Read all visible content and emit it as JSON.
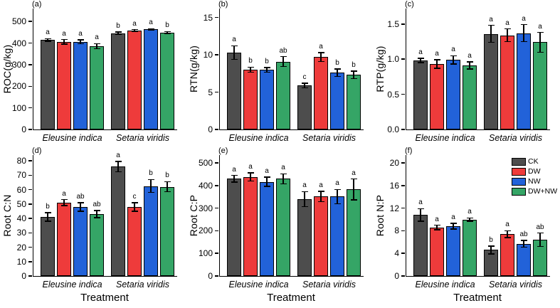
{
  "figure": {
    "x_axis_title": "Treatment",
    "groups": [
      "Eleusine indica",
      "Setaria viridis"
    ],
    "treatment_colors": {
      "CK": "#4d4d4d",
      "DW": "#ee3b3b",
      "NW": "#2262d9",
      "DW+NW": "#35a566"
    },
    "legend": {
      "position": "top-right-of-panel-f",
      "entries": [
        {
          "label": "CK",
          "color": "#4d4d4d"
        },
        {
          "label": "DW",
          "color": "#ee3b3b"
        },
        {
          "label": "NW",
          "color": "#2262d9"
        },
        {
          "label": "DW+NW",
          "color": "#35a566"
        }
      ]
    }
  },
  "chart_data": [
    {
      "panel": "(a)",
      "type": "bar",
      "ylabel": "ROC(g/kg)",
      "ylim": [
        0,
        560
      ],
      "yticks": [
        0,
        100,
        200,
        300,
        400,
        500
      ],
      "ytick_labels": [
        "0",
        "100",
        "200",
        "300",
        "400",
        "500"
      ],
      "categories": [
        "Eleusine indica",
        "Setaria viridis"
      ],
      "series": [
        {
          "name": "CK",
          "color": "#4d4d4d",
          "values": [
            415,
            446
          ],
          "errors": [
            6,
            5
          ],
          "letters": [
            "a",
            "b"
          ]
        },
        {
          "name": "DW",
          "color": "#ee3b3b",
          "values": [
            406,
            458
          ],
          "errors": [
            10,
            4
          ],
          "letters": [
            "a",
            "a"
          ]
        },
        {
          "name": "NW",
          "color": "#2262d9",
          "values": [
            406,
            463
          ],
          "errors": [
            9,
            4
          ],
          "letters": [
            "a",
            "a"
          ]
        },
        {
          "name": "DW+NW",
          "color": "#35a566",
          "values": [
            386,
            449
          ],
          "errors": [
            12,
            4
          ],
          "letters": [
            "a",
            "b"
          ]
        }
      ]
    },
    {
      "panel": "(b)",
      "type": "bar",
      "ylabel": "RTN(g/kg)",
      "ylim": [
        0,
        16.2
      ],
      "yticks": [
        0,
        5,
        10,
        15
      ],
      "ytick_labels": [
        "0",
        "5",
        "10",
        "15"
      ],
      "categories": [
        "Eleusine indica",
        "Setaria viridis"
      ],
      "series": [
        {
          "name": "CK",
          "color": "#4d4d4d",
          "values": [
            10.3,
            5.9
          ],
          "errors": [
            0.9,
            0.3
          ],
          "letters": [
            "a",
            "c"
          ]
        },
        {
          "name": "DW",
          "color": "#ee3b3b",
          "values": [
            8.0,
            9.7
          ],
          "errors": [
            0.35,
            0.6
          ],
          "letters": [
            "b",
            "a"
          ]
        },
        {
          "name": "NW",
          "color": "#2262d9",
          "values": [
            8.0,
            7.6
          ],
          "errors": [
            0.3,
            0.5
          ],
          "letters": [
            "b",
            "b"
          ]
        },
        {
          "name": "DW+NW",
          "color": "#35a566",
          "values": [
            9.1,
            7.3
          ],
          "errors": [
            0.65,
            0.5
          ],
          "letters": [
            "ab",
            "b"
          ]
        }
      ]
    },
    {
      "panel": "(c)",
      "type": "bar",
      "ylabel": "RTP(g/kg)",
      "ylim": [
        0,
        1.72
      ],
      "yticks": [
        0,
        0.5,
        1,
        1.5
      ],
      "ytick_labels": [
        "0.0",
        "0.5",
        "1.0",
        "1.5"
      ],
      "categories": [
        "Eleusine indica",
        "Setaria viridis"
      ],
      "series": [
        {
          "name": "CK",
          "color": "#4d4d4d",
          "values": [
            0.98,
            1.36
          ],
          "errors": [
            0.03,
            0.12
          ],
          "letters": [
            "a",
            "a"
          ]
        },
        {
          "name": "DW",
          "color": "#ee3b3b",
          "values": [
            0.93,
            1.34
          ],
          "errors": [
            0.06,
            0.09
          ],
          "letters": [
            "a",
            "a"
          ]
        },
        {
          "name": "NW",
          "color": "#2262d9",
          "values": [
            0.99,
            1.37
          ],
          "errors": [
            0.06,
            0.12
          ],
          "letters": [
            "a",
            "a"
          ]
        },
        {
          "name": "DW+NW",
          "color": "#35a566",
          "values": [
            0.91,
            1.24
          ],
          "errors": [
            0.05,
            0.14
          ],
          "letters": [
            "a",
            "a"
          ]
        }
      ]
    },
    {
      "panel": "(d)",
      "type": "bar",
      "ylabel": "Root C:N",
      "ylim": [
        0,
        84
      ],
      "yticks": [
        0,
        10,
        20,
        30,
        40,
        50,
        60,
        70,
        80
      ],
      "ytick_labels": [
        "0",
        "10",
        "20",
        "30",
        "40",
        "50",
        "60",
        "70",
        "80"
      ],
      "categories": [
        "Eleusine indica",
        "Setaria viridis"
      ],
      "series": [
        {
          "name": "CK",
          "color": "#4d4d4d",
          "values": [
            41,
            76
          ],
          "errors": [
            3,
            3.5
          ],
          "letters": [
            "b",
            "a"
          ]
        },
        {
          "name": "DW",
          "color": "#ee3b3b",
          "values": [
            51,
            48
          ],
          "errors": [
            2,
            3
          ],
          "letters": [
            "a",
            "c"
          ]
        },
        {
          "name": "NW",
          "color": "#2262d9",
          "values": [
            48,
            62.5
          ],
          "errors": [
            3,
            4.5
          ],
          "letters": [
            "ab",
            "b"
          ]
        },
        {
          "name": "DW+NW",
          "color": "#35a566",
          "values": [
            43,
            62
          ],
          "errors": [
            2.5,
            3.5
          ],
          "letters": [
            "ab",
            "b"
          ]
        }
      ]
    },
    {
      "panel": "(e)",
      "type": "bar",
      "ylabel": "Root C:P",
      "ylim": [
        0,
        535
      ],
      "yticks": [
        0,
        100,
        200,
        300,
        400,
        500
      ],
      "ytick_labels": [
        "0",
        "100",
        "200",
        "300",
        "400",
        "500"
      ],
      "categories": [
        "Eleusine indica",
        "Setaria viridis"
      ],
      "series": [
        {
          "name": "CK",
          "color": "#4d4d4d",
          "values": [
            430,
            340
          ],
          "errors": [
            15,
            33
          ],
          "letters": [
            "a",
            "a"
          ]
        },
        {
          "name": "DW",
          "color": "#ee3b3b",
          "values": [
            438,
            352
          ],
          "errors": [
            18,
            23
          ],
          "letters": [
            "a",
            "a"
          ]
        },
        {
          "name": "NW",
          "color": "#2262d9",
          "values": [
            417,
            351
          ],
          "errors": [
            20,
            32
          ],
          "letters": [
            "a",
            "a"
          ]
        },
        {
          "name": "DW+NW",
          "color": "#35a566",
          "values": [
            430,
            383
          ],
          "errors": [
            22,
            46
          ],
          "letters": [
            "a",
            "a"
          ]
        }
      ]
    },
    {
      "panel": "(f)",
      "type": "bar",
      "ylabel": "Root N:P",
      "ylim": [
        0,
        21.4
      ],
      "yticks": [
        0,
        4,
        8,
        12,
        16,
        20
      ],
      "ytick_labels": [
        "0",
        "4",
        "8",
        "12",
        "16",
        "20"
      ],
      "categories": [
        "Eleusine indica",
        "Setaria viridis"
      ],
      "series": [
        {
          "name": "CK",
          "color": "#4d4d4d",
          "values": [
            10.8,
            4.6
          ],
          "errors": [
            1.1,
            0.7
          ],
          "letters": [
            "a",
            "b"
          ]
        },
        {
          "name": "DW",
          "color": "#ee3b3b",
          "values": [
            8.6,
            7.4
          ],
          "errors": [
            0.4,
            0.6
          ],
          "letters": [
            "a",
            "a"
          ]
        },
        {
          "name": "NW",
          "color": "#2262d9",
          "values": [
            8.8,
            5.7
          ],
          "errors": [
            0.5,
            0.6
          ],
          "letters": [
            "a",
            "ab"
          ]
        },
        {
          "name": "DW+NW",
          "color": "#35a566",
          "values": [
            10.0,
            6.4
          ],
          "errors": [
            0.3,
            1.2
          ],
          "letters": [
            "a",
            "ab"
          ]
        }
      ]
    }
  ]
}
